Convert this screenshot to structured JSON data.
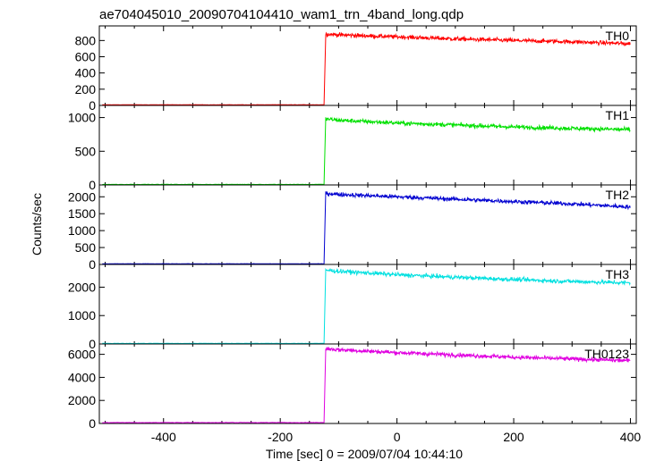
{
  "chart_data": {
    "type": "line",
    "title": "ae704045010_20090704104410_wam1_trn_4band_long.qdp",
    "xlabel": "Time [sec] 0 = 2009/07/04 10:44:10",
    "ylabel": "Counts/sec",
    "xlim": [
      -510,
      410
    ],
    "x_ticks": [
      -400,
      -200,
      0,
      200,
      400
    ],
    "grid": false,
    "trigger_time": -122,
    "panels": [
      {
        "name": "TH0",
        "color": "#ff0000",
        "ylim": [
          0,
          980
        ],
        "y_ticks": [
          0,
          200,
          400,
          600,
          800
        ],
        "series": [
          {
            "x": [
              -505,
              -300,
              -125
            ],
            "y": [
              8,
              8,
              8
            ]
          },
          {
            "x": [
              -122,
              -100,
              0,
              100,
              200,
              300,
              400
            ],
            "y": [
              880,
              870,
              845,
              820,
              800,
              785,
              760
            ]
          }
        ]
      },
      {
        "name": "TH1",
        "color": "#00e000",
        "ylim": [
          0,
          1180
        ],
        "y_ticks": [
          0,
          500,
          1000
        ],
        "series": [
          {
            "x": [
              -505,
              -300,
              -125
            ],
            "y": [
              8,
              8,
              8
            ]
          },
          {
            "x": [
              -122,
              -100,
              0,
              100,
              200,
              300,
              400
            ],
            "y": [
              980,
              960,
              920,
              890,
              860,
              840,
              820
            ]
          }
        ]
      },
      {
        "name": "TH2",
        "color": "#0000d0",
        "ylim": [
          0,
          2350
        ],
        "y_ticks": [
          0,
          500,
          1000,
          1500,
          2000
        ],
        "series": [
          {
            "x": [
              -505,
              -300,
              -125
            ],
            "y": [
              20,
              20,
              20
            ]
          },
          {
            "x": [
              -122,
              -100,
              0,
              100,
              200,
              300,
              400
            ],
            "y": [
              2100,
              2070,
              2000,
              1930,
              1860,
              1790,
              1700
            ]
          }
        ]
      },
      {
        "name": "TH3",
        "color": "#00e0e0",
        "ylim": [
          0,
          2800
        ],
        "y_ticks": [
          0,
          1000,
          2000
        ],
        "series": [
          {
            "x": [
              -505,
              -300,
              -125
            ],
            "y": [
              20,
              20,
              20
            ]
          },
          {
            "x": [
              -122,
              -100,
              0,
              100,
              200,
              300,
              400
            ],
            "y": [
              2600,
              2560,
              2440,
              2350,
              2270,
              2200,
              2150
            ]
          }
        ]
      },
      {
        "name": "TH0123",
        "color": "#e000e0",
        "ylim": [
          0,
          6900
        ],
        "y_ticks": [
          0,
          2000,
          4000,
          6000
        ],
        "series": [
          {
            "x": [
              -505,
              -300,
              -125
            ],
            "y": [
              80,
              80,
              80
            ]
          },
          {
            "x": [
              -122,
              -100,
              0,
              100,
              200,
              300,
              400
            ],
            "y": [
              6500,
              6400,
              6150,
              5950,
              5750,
              5600,
              5450
            ]
          }
        ]
      }
    ]
  }
}
